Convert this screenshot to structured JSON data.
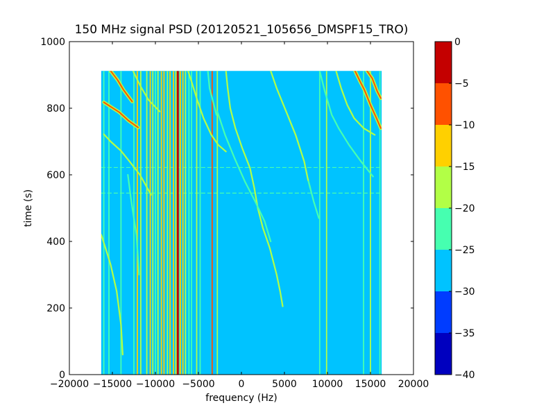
{
  "chart_data": {
    "type": "heatmap",
    "title": "150 MHz signal PSD (20120521_105656_DMSPF15_TRO)",
    "xlabel": "frequency (Hz)",
    "ylabel": "time (s)",
    "xlim": [
      -20000,
      20000
    ],
    "ylim": [
      0,
      1000
    ],
    "xticks": [
      -20000,
      -15000,
      -10000,
      -5000,
      0,
      5000,
      10000,
      15000,
      20000
    ],
    "xtick_labels": [
      "−20000",
      "−15000",
      "−10000",
      "−5000",
      "0",
      "5000",
      "10000",
      "15000",
      "20000"
    ],
    "yticks": [
      0,
      200,
      400,
      600,
      800,
      1000
    ],
    "ytick_labels": [
      "0",
      "200",
      "400",
      "600",
      "800",
      "1000"
    ],
    "data_extent": {
      "freq_min": -16300,
      "freq_max": 16300,
      "time_min": 0,
      "time_max": 912
    },
    "background_level": -27.5,
    "colorbar": {
      "min": -40,
      "max": 0,
      "ticks": [
        0,
        -5,
        -10,
        -15,
        -20,
        -25,
        -30,
        -35,
        -40
      ],
      "tick_labels": [
        "0",
        "−5",
        "−10",
        "−15",
        "−20",
        "−25",
        "−30",
        "−35",
        "−40"
      ],
      "levels": [
        {
          "from": -40,
          "to": -35,
          "color": "#0000bf"
        },
        {
          "from": -35,
          "to": -30,
          "color": "#003cff"
        },
        {
          "from": -30,
          "to": -25,
          "color": "#00c3ff"
        },
        {
          "from": -25,
          "to": -20,
          "color": "#46ffb0"
        },
        {
          "from": -20,
          "to": -15,
          "color": "#b2ff46"
        },
        {
          "from": -15,
          "to": -10,
          "color": "#ffd000"
        },
        {
          "from": -10,
          "to": -5,
          "color": "#ff5100"
        },
        {
          "from": -5,
          "to": 0,
          "color": "#c40000"
        }
      ]
    },
    "vertical_lines": [
      {
        "freq": -16000,
        "level": -22
      },
      {
        "freq": -15400,
        "level": -22
      },
      {
        "freq": -14000,
        "level": -22
      },
      {
        "freq": -12500,
        "level": -22
      },
      {
        "freq": -12100,
        "level": -12
      },
      {
        "freq": -11700,
        "level": -17
      },
      {
        "freq": -11000,
        "level": -17
      },
      {
        "freq": -10600,
        "level": -12
      },
      {
        "freq": -10300,
        "level": -17
      },
      {
        "freq": -10000,
        "level": -22
      },
      {
        "freq": -9700,
        "level": -17
      },
      {
        "freq": -9300,
        "level": -12
      },
      {
        "freq": -9000,
        "level": -12
      },
      {
        "freq": -8600,
        "level": -17
      },
      {
        "freq": -8300,
        "level": -12
      },
      {
        "freq": -7900,
        "level": -12
      },
      {
        "freq": -7600,
        "level": -17
      },
      {
        "freq": -7400,
        "level": -2
      },
      {
        "freq": -7100,
        "level": -12
      },
      {
        "freq": -6800,
        "level": -12
      },
      {
        "freq": -6500,
        "level": -17
      },
      {
        "freq": -6100,
        "level": -22
      },
      {
        "freq": -5800,
        "level": -22
      },
      {
        "freq": -5200,
        "level": -17
      },
      {
        "freq": -4800,
        "level": -22
      },
      {
        "freq": -3400,
        "level": -7
      },
      {
        "freq": -2800,
        "level": -17
      },
      {
        "freq": 9100,
        "level": -22
      },
      {
        "freq": 9900,
        "level": -17
      },
      {
        "freq": 14200,
        "level": -22
      },
      {
        "freq": 15000,
        "level": -17
      },
      {
        "freq": 16100,
        "level": -22
      }
    ],
    "drifting_traces": [
      {
        "level": -7,
        "points": [
          [
            -16000,
            818
          ],
          [
            -14200,
            788
          ],
          [
            -13100,
            762
          ],
          [
            -12000,
            742
          ]
        ]
      },
      {
        "level": -17,
        "points": [
          [
            -16000,
            722
          ],
          [
            -15200,
            700
          ],
          [
            -14000,
            672
          ],
          [
            -13000,
            640
          ],
          [
            -11800,
            600
          ],
          [
            -10500,
            540
          ]
        ]
      },
      {
        "level": -7,
        "points": [
          [
            -15200,
            912
          ],
          [
            -14400,
            885
          ],
          [
            -13700,
            855
          ],
          [
            -12700,
            820
          ]
        ]
      },
      {
        "level": -17,
        "points": [
          [
            -12600,
            912
          ],
          [
            -12100,
            885
          ],
          [
            -11600,
            860
          ],
          [
            -10800,
            825
          ],
          [
            -9500,
            790
          ]
        ]
      },
      {
        "level": -17,
        "points": [
          [
            -6200,
            912
          ],
          [
            -5800,
            880
          ],
          [
            -5200,
            830
          ],
          [
            -4400,
            770
          ],
          [
            -3500,
            720
          ],
          [
            -2700,
            690
          ],
          [
            -1800,
            670
          ]
        ]
      },
      {
        "level": -22,
        "points": [
          [
            -3900,
            912
          ],
          [
            -3700,
            860
          ],
          [
            -3300,
            820
          ],
          [
            -2900,
            780
          ]
        ]
      },
      {
        "level": -17,
        "points": [
          [
            -1800,
            912
          ],
          [
            -1600,
            860
          ],
          [
            -1300,
            800
          ],
          [
            -700,
            740
          ],
          [
            100,
            680
          ],
          [
            1000,
            620
          ],
          [
            1500,
            560
          ],
          [
            1900,
            500
          ],
          [
            2500,
            440
          ],
          [
            3300,
            380
          ],
          [
            4100,
            300
          ],
          [
            4500,
            250
          ],
          [
            4800,
            205
          ]
        ]
      },
      {
        "level": -22,
        "points": [
          [
            -2800,
            790
          ],
          [
            -1900,
            720
          ],
          [
            -800,
            650
          ],
          [
            400,
            580
          ],
          [
            1600,
            520
          ],
          [
            2700,
            460
          ],
          [
            3400,
            400
          ]
        ]
      },
      {
        "level": -17,
        "points": [
          [
            3400,
            912
          ],
          [
            4100,
            860
          ],
          [
            5200,
            790
          ],
          [
            6300,
            720
          ],
          [
            7300,
            640
          ],
          [
            7700,
            590
          ],
          [
            8000,
            560
          ]
        ]
      },
      {
        "level": -22,
        "points": [
          [
            7800,
            580
          ],
          [
            8400,
            520
          ],
          [
            9000,
            470
          ]
        ]
      },
      {
        "level": -22,
        "points": [
          [
            9100,
            912
          ],
          [
            9700,
            850
          ],
          [
            10500,
            780
          ],
          [
            11300,
            740
          ],
          [
            12500,
            690
          ],
          [
            13900,
            640
          ],
          [
            15300,
            595
          ]
        ]
      },
      {
        "level": -17,
        "points": [
          [
            11000,
            912
          ],
          [
            11600,
            860
          ],
          [
            12300,
            810
          ],
          [
            13100,
            770
          ],
          [
            14200,
            740
          ],
          [
            15500,
            720
          ]
        ]
      },
      {
        "level": -7,
        "points": [
          [
            13200,
            912
          ],
          [
            13800,
            880
          ],
          [
            14300,
            855
          ],
          [
            15000,
            810
          ],
          [
            15700,
            770
          ],
          [
            16200,
            740
          ]
        ]
      },
      {
        "level": -7,
        "points": [
          [
            14600,
            912
          ],
          [
            15200,
            890
          ],
          [
            15800,
            850
          ],
          [
            16200,
            830
          ]
        ]
      },
      {
        "level": -17,
        "points": [
          [
            -16300,
            420
          ],
          [
            -15800,
            380
          ],
          [
            -15200,
            330
          ],
          [
            -14500,
            250
          ],
          [
            -14000,
            150
          ],
          [
            -13800,
            60
          ]
        ]
      },
      {
        "level": -22,
        "points": [
          [
            -13200,
            600
          ],
          [
            -12800,
            520
          ],
          [
            -12200,
            420
          ],
          [
            -11900,
            300
          ]
        ]
      }
    ],
    "horizontal_streaks": [
      {
        "time": 545,
        "level": -22
      },
      {
        "time": 622,
        "level": -22
      }
    ]
  }
}
